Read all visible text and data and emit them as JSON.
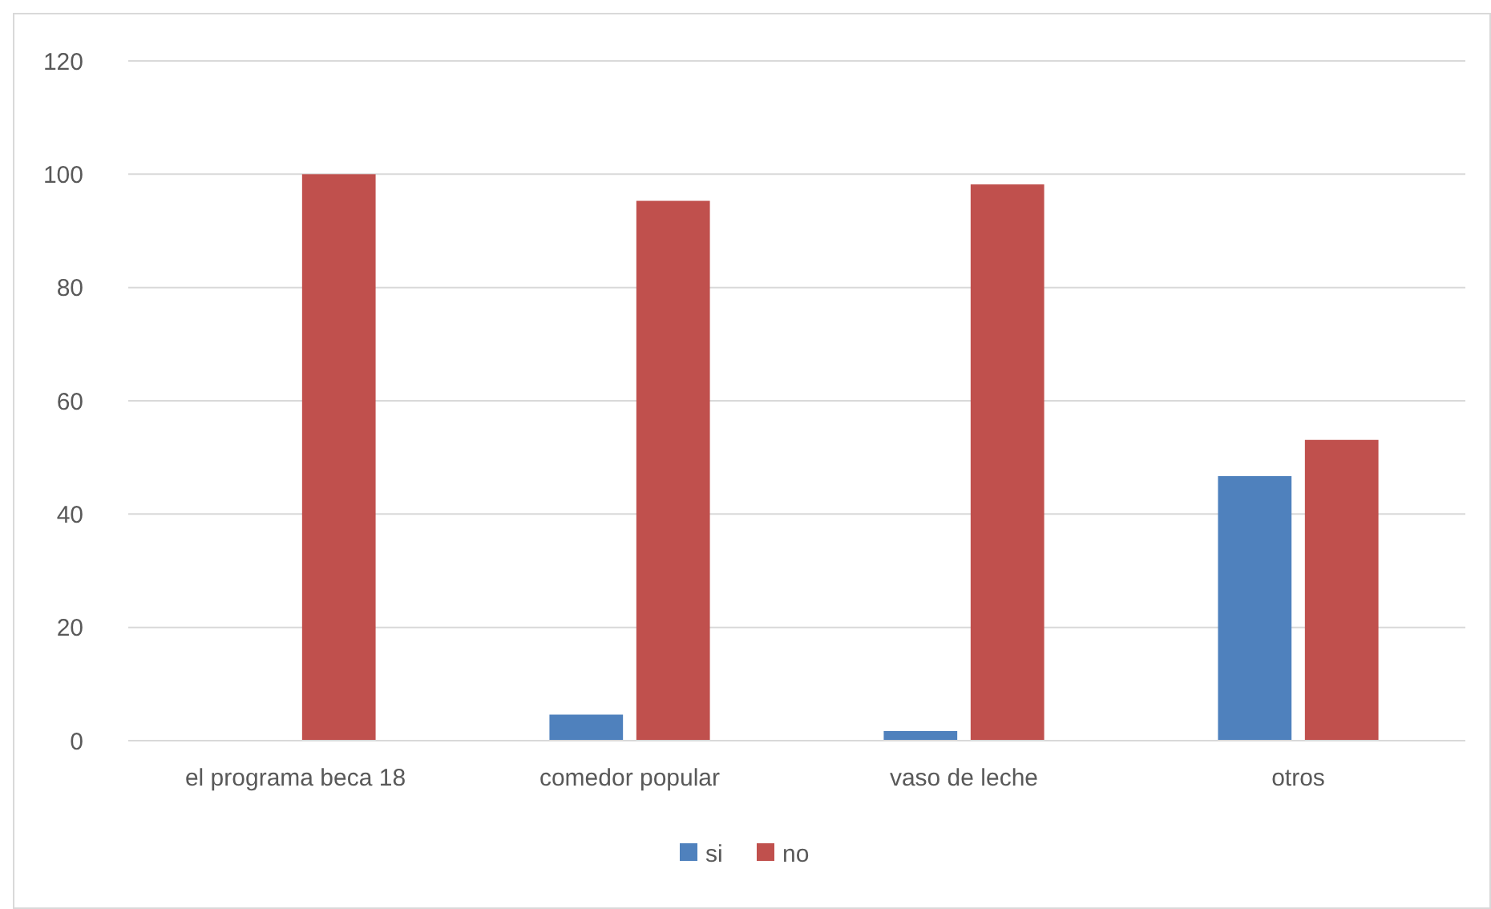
{
  "chart_data": {
    "type": "bar",
    "categories": [
      "el programa beca 18",
      "comedor popular",
      "vaso de leche",
      "otros"
    ],
    "series": [
      {
        "name": "si",
        "color": "#4f81bd",
        "values": [
          0,
          4.6,
          1.7,
          46.7
        ]
      },
      {
        "name": "no",
        "color": "#c0504d",
        "values": [
          100,
          95.3,
          98.2,
          53.1
        ]
      }
    ],
    "ylim": [
      0,
      120
    ],
    "yticks": [
      0,
      20,
      40,
      60,
      80,
      100,
      120
    ],
    "grid": "y",
    "legend": "bottom"
  }
}
